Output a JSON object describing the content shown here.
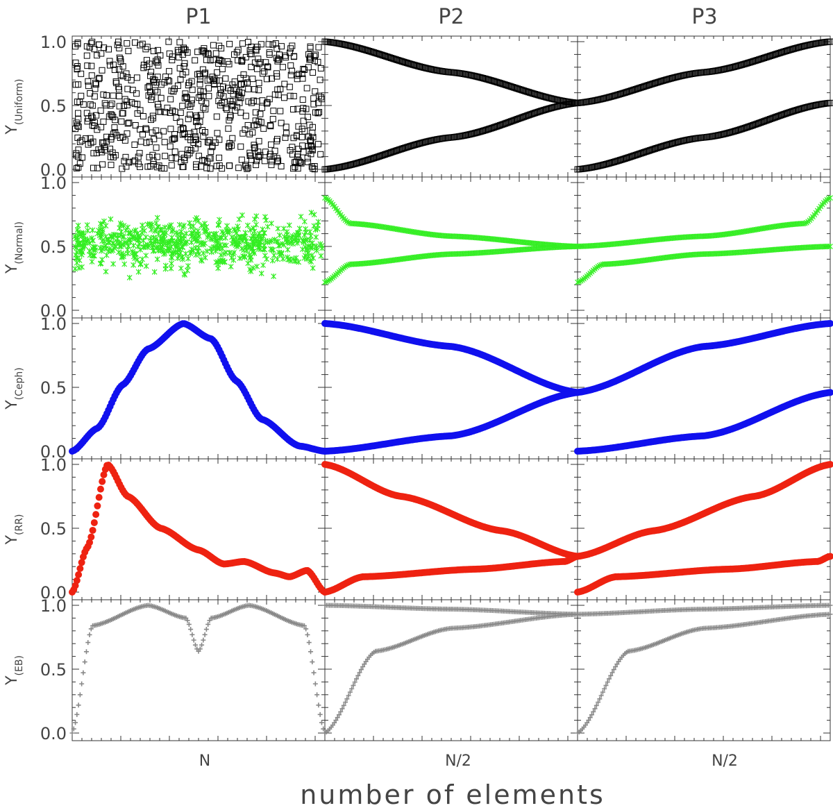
{
  "chart_data": {
    "type": "scatter",
    "layout": "grid",
    "rows": 5,
    "cols": 3,
    "column_titles": [
      "P1",
      "P2",
      "P3"
    ],
    "xlabel": "number of elements",
    "x_tick_labels": [
      "N",
      "N/2",
      "N/2"
    ],
    "ylim": [
      0,
      1
    ],
    "y_ticks": [
      "0.0",
      "0.5",
      "1.0"
    ],
    "rows_info": [
      {
        "ylabel_main": "Y",
        "ylabel_sub": "(Uniform)",
        "color": "#000000",
        "marker": "open-square",
        "series": [
          {
            "panel": "P1",
            "pattern": "uniform random scatter",
            "y_range": [
              0,
              1
            ],
            "points_shown": 700
          },
          {
            "panel": "P2",
            "pattern": "two branches",
            "values": [
              [
                0,
                1.0
              ],
              [
                0.5,
                0.76
              ],
              [
                1.0,
                0.52
              ]
            ],
            "values_lower": [
              [
                0,
                0.0
              ],
              [
                0.5,
                0.25
              ],
              [
                1.0,
                0.52
              ]
            ]
          },
          {
            "panel": "P3",
            "pattern": "two branches",
            "values": [
              [
                0,
                0.52
              ],
              [
                0.5,
                0.76
              ],
              [
                1.0,
                1.0
              ]
            ],
            "values_lower": [
              [
                0,
                0.0
              ],
              [
                0.5,
                0.25
              ],
              [
                1.0,
                0.52
              ]
            ]
          }
        ]
      },
      {
        "ylabel_main": "Y",
        "ylabel_sub": "(Normal)",
        "color": "#33ee22",
        "marker": "asterisk",
        "series": [
          {
            "panel": "P1",
            "pattern": "normal random scatter",
            "mean": 0.52,
            "spread": 0.09,
            "y_range": [
              0.22,
              0.9
            ]
          },
          {
            "panel": "P2",
            "pattern": "two branches",
            "values": [
              [
                0,
                0.88
              ],
              [
                0.1,
                0.68
              ],
              [
                0.5,
                0.58
              ],
              [
                1.0,
                0.5
              ]
            ],
            "values_lower": [
              [
                0,
                0.22
              ],
              [
                0.1,
                0.36
              ],
              [
                0.5,
                0.44
              ],
              [
                1.0,
                0.5
              ]
            ]
          },
          {
            "panel": "P3",
            "pattern": "two branches",
            "values": [
              [
                0,
                0.5
              ],
              [
                0.5,
                0.58
              ],
              [
                0.9,
                0.68
              ],
              [
                1.0,
                0.88
              ]
            ],
            "values_lower": [
              [
                0,
                0.22
              ],
              [
                0.1,
                0.36
              ],
              [
                0.5,
                0.44
              ],
              [
                1.0,
                0.5
              ]
            ]
          }
        ]
      },
      {
        "ylabel_main": "Y",
        "ylabel_sub": "(Ceph)",
        "color": "#1010ee",
        "marker": "filled-circle",
        "series": [
          {
            "panel": "P1",
            "pattern": "single peak",
            "values": [
              [
                0,
                0.0
              ],
              [
                0.1,
                0.18
              ],
              [
                0.2,
                0.52
              ],
              [
                0.3,
                0.8
              ],
              [
                0.44,
                1.0
              ],
              [
                0.55,
                0.88
              ],
              [
                0.65,
                0.55
              ],
              [
                0.75,
                0.25
              ],
              [
                0.9,
                0.04
              ],
              [
                1.0,
                0.0
              ]
            ]
          },
          {
            "panel": "P2",
            "pattern": "two branches",
            "values": [
              [
                0,
                1.0
              ],
              [
                0.5,
                0.82
              ],
              [
                1.0,
                0.46
              ]
            ],
            "values_lower": [
              [
                0,
                0.0
              ],
              [
                0.5,
                0.12
              ],
              [
                1.0,
                0.46
              ]
            ]
          },
          {
            "panel": "P3",
            "pattern": "two branches",
            "values": [
              [
                0,
                0.46
              ],
              [
                0.5,
                0.82
              ],
              [
                1.0,
                1.0
              ]
            ],
            "values_lower": [
              [
                0,
                0.0
              ],
              [
                0.5,
                0.12
              ],
              [
                1.0,
                0.46
              ]
            ]
          }
        ]
      },
      {
        "ylabel_main": "Y",
        "ylabel_sub": "(RR)",
        "color": "#ee2211",
        "marker": "filled-circle",
        "series": [
          {
            "panel": "P1",
            "pattern": "sharp rise then decay",
            "values": [
              [
                0,
                0.0
              ],
              [
                0.06,
                0.35
              ],
              [
                0.14,
                1.0
              ],
              [
                0.22,
                0.75
              ],
              [
                0.35,
                0.5
              ],
              [
                0.5,
                0.33
              ],
              [
                0.6,
                0.22
              ],
              [
                0.68,
                0.24
              ],
              [
                0.8,
                0.15
              ],
              [
                0.86,
                0.12
              ],
              [
                0.93,
                0.17
              ],
              [
                1.0,
                0.0
              ]
            ]
          },
          {
            "panel": "P2",
            "pattern": "two branches",
            "values": [
              [
                0,
                1.0
              ],
              [
                0.3,
                0.75
              ],
              [
                0.7,
                0.48
              ],
              [
                1.0,
                0.28
              ]
            ],
            "values_lower": [
              [
                0,
                0.0
              ],
              [
                0.15,
                0.12
              ],
              [
                0.6,
                0.18
              ],
              [
                0.95,
                0.24
              ],
              [
                1.0,
                0.28
              ]
            ]
          },
          {
            "panel": "P3",
            "pattern": "two branches",
            "values": [
              [
                0,
                0.28
              ],
              [
                0.3,
                0.48
              ],
              [
                0.7,
                0.75
              ],
              [
                1.0,
                1.0
              ]
            ],
            "values_lower": [
              [
                0,
                0.0
              ],
              [
                0.15,
                0.12
              ],
              [
                0.6,
                0.18
              ],
              [
                0.95,
                0.24
              ],
              [
                1.0,
                0.28
              ]
            ]
          }
        ]
      },
      {
        "ylabel_main": "Y",
        "ylabel_sub": "(EB)",
        "color": "#888888",
        "marker": "plus",
        "series": [
          {
            "panel": "P1",
            "pattern": "double dip",
            "values": [
              [
                0,
                0.0
              ],
              [
                0.08,
                0.84
              ],
              [
                0.3,
                1.0
              ],
              [
                0.45,
                0.9
              ],
              [
                0.5,
                0.64
              ],
              [
                0.55,
                0.9
              ],
              [
                0.7,
                1.0
              ],
              [
                0.92,
                0.84
              ],
              [
                1.0,
                0.0
              ]
            ]
          },
          {
            "panel": "P2",
            "pattern": "two branches",
            "values": [
              [
                0,
                1.0
              ],
              [
                0.5,
                0.97
              ],
              [
                1.0,
                0.93
              ]
            ],
            "values_lower": [
              [
                0,
                0.0
              ],
              [
                0.2,
                0.64
              ],
              [
                0.5,
                0.82
              ],
              [
                1.0,
                0.93
              ]
            ]
          },
          {
            "panel": "P3",
            "pattern": "two branches",
            "values": [
              [
                0,
                0.93
              ],
              [
                0.5,
                0.97
              ],
              [
                1.0,
                1.0
              ]
            ],
            "values_lower": [
              [
                0,
                0.0
              ],
              [
                0.2,
                0.64
              ],
              [
                0.5,
                0.82
              ],
              [
                1.0,
                0.93
              ]
            ]
          }
        ]
      }
    ]
  }
}
